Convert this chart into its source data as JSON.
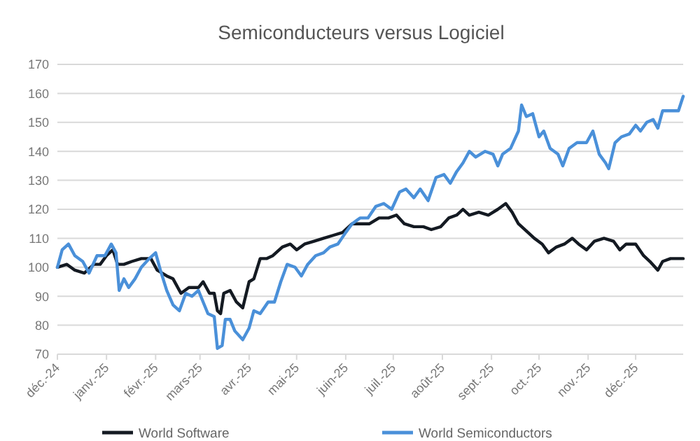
{
  "chart_data": {
    "type": "line",
    "title": "Semiconducteurs versus Logiciel",
    "xlim": [
      "2024-12-01",
      "2025-12-31"
    ],
    "xticks": [
      {
        "value": "2024-12-01",
        "label": "déc.-24"
      },
      {
        "value": "2025-01-01",
        "label": "janv.-25"
      },
      {
        "value": "2025-02-01",
        "label": "févr.-25"
      },
      {
        "value": "2025-03-01",
        "label": "mars-25"
      },
      {
        "value": "2025-04-01",
        "label": "avr.-25"
      },
      {
        "value": "2025-05-01",
        "label": "mai-25"
      },
      {
        "value": "2025-06-01",
        "label": "juin-25"
      },
      {
        "value": "2025-07-01",
        "label": "juil.-25"
      },
      {
        "value": "2025-08-01",
        "label": "août-25"
      },
      {
        "value": "2025-09-01",
        "label": "sept.-25"
      },
      {
        "value": "2025-10-01",
        "label": "oct.-25"
      },
      {
        "value": "2025-11-01",
        "label": "nov.-25"
      },
      {
        "value": "2025-12-01",
        "label": "déc.-25"
      }
    ],
    "ylim": [
      70,
      170
    ],
    "yticks": [
      70,
      80,
      90,
      100,
      110,
      120,
      130,
      140,
      150,
      160,
      170
    ],
    "grid": "y",
    "legend": "bottom",
    "line_style": "solid",
    "marker": "none",
    "series": [
      {
        "name": "World Software",
        "color": "#141a22",
        "x": [
          "2024-12-01",
          "2024-12-07",
          "2024-12-12",
          "2024-12-18",
          "2024-12-24",
          "2024-12-28",
          "2025-01-01",
          "2025-01-05",
          "2025-01-08",
          "2025-01-12",
          "2025-01-17",
          "2025-01-23",
          "2025-01-29",
          "2025-02-02",
          "2025-02-08",
          "2025-02-12",
          "2025-02-17",
          "2025-02-22",
          "2025-02-28",
          "2025-03-03",
          "2025-03-07",
          "2025-03-10",
          "2025-03-12",
          "2025-03-14",
          "2025-03-16",
          "2025-03-20",
          "2025-03-24",
          "2025-03-28",
          "2025-04-01",
          "2025-04-04",
          "2025-04-08",
          "2025-04-12",
          "2025-04-16",
          "2025-04-22",
          "2025-04-27",
          "2025-05-01",
          "2025-05-06",
          "2025-05-12",
          "2025-05-18",
          "2025-05-24",
          "2025-05-30",
          "2025-06-05",
          "2025-06-10",
          "2025-06-16",
          "2025-06-22",
          "2025-06-28",
          "2025-07-03",
          "2025-07-08",
          "2025-07-14",
          "2025-07-20",
          "2025-07-25",
          "2025-07-31",
          "2025-08-05",
          "2025-08-10",
          "2025-08-14",
          "2025-08-18",
          "2025-08-24",
          "2025-08-30",
          "2025-09-05",
          "2025-09-10",
          "2025-09-14",
          "2025-09-18",
          "2025-09-22",
          "2025-09-28",
          "2025-10-03",
          "2025-10-07",
          "2025-10-12",
          "2025-10-17",
          "2025-10-22",
          "2025-10-26",
          "2025-10-31",
          "2025-11-05",
          "2025-11-11",
          "2025-11-17",
          "2025-11-21",
          "2025-11-25",
          "2025-12-01",
          "2025-12-06",
          "2025-12-10",
          "2025-12-15",
          "2025-12-18",
          "2025-12-23",
          "2025-12-31"
        ],
        "values": [
          100,
          101,
          99,
          98,
          101,
          101,
          104,
          106,
          101,
          101,
          102,
          103,
          103,
          99,
          97,
          96,
          91,
          93,
          93,
          95,
          91,
          91,
          85,
          84,
          91,
          92,
          88,
          86,
          95,
          96,
          103,
          103,
          104,
          107,
          108,
          106,
          108,
          109,
          110,
          111,
          112,
          115,
          115,
          115,
          117,
          117,
          118,
          115,
          114,
          114,
          113,
          114,
          117,
          118,
          120,
          118,
          119,
          118,
          120,
          122,
          119,
          115,
          113,
          110,
          108,
          105,
          107,
          108,
          110,
          108,
          106,
          109,
          110,
          109,
          106,
          108,
          108,
          104,
          102,
          99,
          102,
          103,
          103
        ]
      },
      {
        "name": "World Semiconductors",
        "color": "#4a90d9",
        "x": [
          "2024-12-01",
          "2024-12-04",
          "2024-12-08",
          "2024-12-12",
          "2024-12-17",
          "2024-12-21",
          "2024-12-26",
          "2024-12-31",
          "2025-01-04",
          "2025-01-07",
          "2025-01-09",
          "2025-01-12",
          "2025-01-15",
          "2025-01-19",
          "2025-01-23",
          "2025-01-28",
          "2025-02-01",
          "2025-02-04",
          "2025-02-08",
          "2025-02-12",
          "2025-02-16",
          "2025-02-20",
          "2025-02-24",
          "2025-02-28",
          "2025-03-03",
          "2025-03-06",
          "2025-03-10",
          "2025-03-12",
          "2025-03-15",
          "2025-03-17",
          "2025-03-20",
          "2025-03-23",
          "2025-03-28",
          "2025-04-01",
          "2025-04-04",
          "2025-04-08",
          "2025-04-13",
          "2025-04-17",
          "2025-04-21",
          "2025-04-25",
          "2025-04-30",
          "2025-05-04",
          "2025-05-08",
          "2025-05-13",
          "2025-05-18",
          "2025-05-22",
          "2025-05-27",
          "2025-06-01",
          "2025-06-05",
          "2025-06-10",
          "2025-06-15",
          "2025-06-20",
          "2025-06-25",
          "2025-06-30",
          "2025-07-05",
          "2025-07-09",
          "2025-07-14",
          "2025-07-18",
          "2025-07-23",
          "2025-07-28",
          "2025-08-02",
          "2025-08-06",
          "2025-08-10",
          "2025-08-14",
          "2025-08-18",
          "2025-08-22",
          "2025-08-28",
          "2025-09-02",
          "2025-09-05",
          "2025-09-08",
          "2025-09-13",
          "2025-09-18",
          "2025-09-20",
          "2025-09-23",
          "2025-09-27",
          "2025-10-01",
          "2025-10-04",
          "2025-10-08",
          "2025-10-13",
          "2025-10-16",
          "2025-10-20",
          "2025-10-25",
          "2025-10-31",
          "2025-11-04",
          "2025-11-08",
          "2025-11-12",
          "2025-11-14",
          "2025-11-18",
          "2025-11-22",
          "2025-11-27",
          "2025-12-01",
          "2025-12-04",
          "2025-12-08",
          "2025-12-12",
          "2025-12-15",
          "2025-12-18",
          "2025-12-24",
          "2025-12-28",
          "2025-12-31"
        ],
        "values": [
          100,
          106,
          108,
          104,
          102,
          98,
          104,
          104,
          108,
          105,
          92,
          96,
          93,
          96,
          100,
          103,
          105,
          99,
          92,
          87,
          85,
          91,
          90,
          92,
          88,
          84,
          83,
          72,
          73,
          82,
          82,
          78,
          75,
          79,
          85,
          84,
          88,
          88,
          95,
          101,
          100,
          97,
          101,
          104,
          105,
          107,
          108,
          112,
          115,
          117,
          117,
          121,
          122,
          120,
          126,
          127,
          124,
          127,
          123,
          131,
          132,
          129,
          133,
          136,
          140,
          138,
          140,
          139,
          135,
          139,
          141,
          147,
          156,
          152,
          153,
          145,
          147,
          141,
          139,
          135,
          141,
          143,
          143,
          147,
          139,
          136,
          134,
          143,
          145,
          146,
          149,
          147,
          150,
          151,
          148,
          154,
          154,
          154,
          159
        ]
      }
    ]
  }
}
